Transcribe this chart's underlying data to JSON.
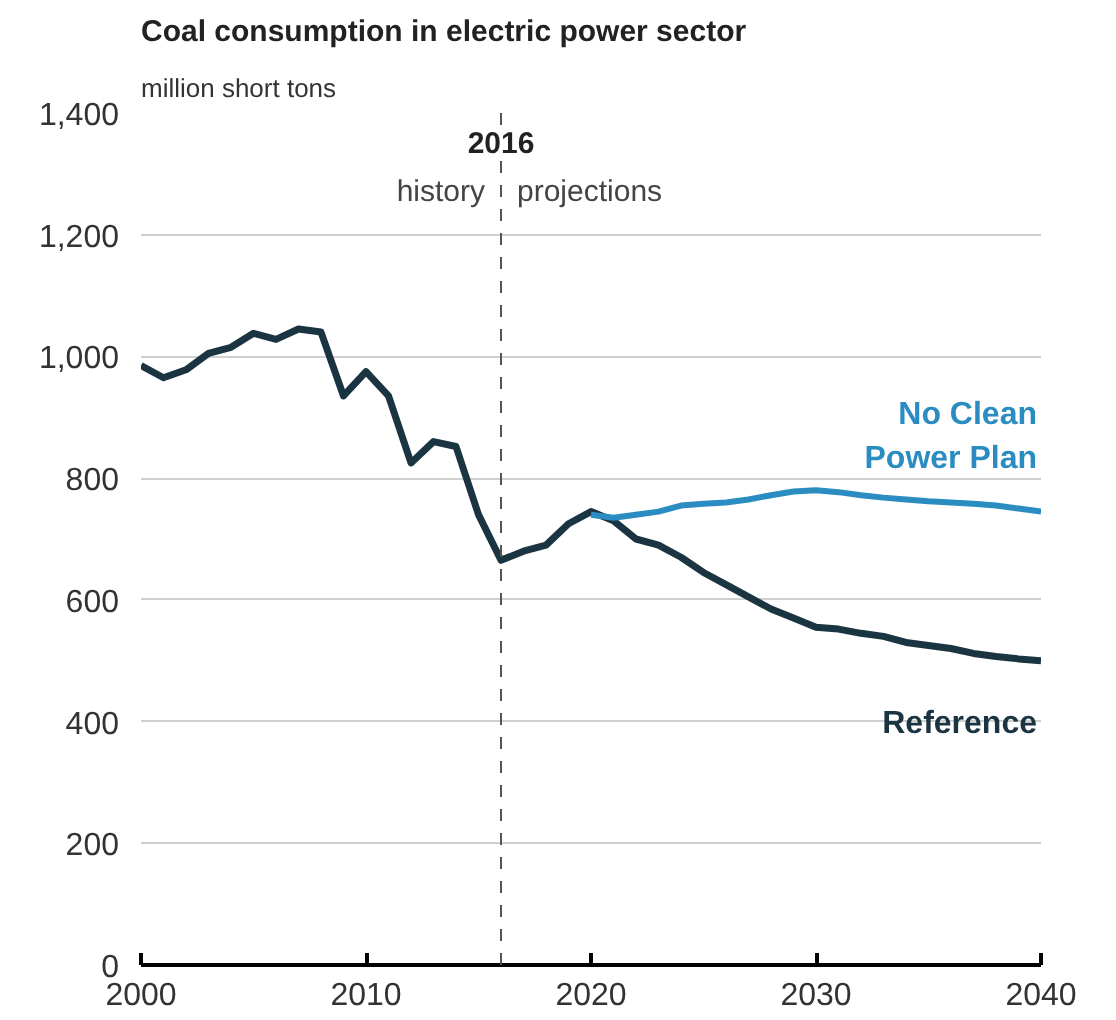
{
  "chart_data": {
    "type": "line",
    "title": "Coal consumption in electric power sector",
    "subtitle": "million short tons",
    "xlim": [
      2000,
      2040
    ],
    "xticks": [
      2000,
      2010,
      2020,
      2030,
      2040
    ],
    "ylim": [
      0,
      1400
    ],
    "yticks": [
      {
        "value": 0,
        "label": "0"
      },
      {
        "value": 200,
        "label": "200"
      },
      {
        "value": 400,
        "label": "400"
      },
      {
        "value": 600,
        "label": "600"
      },
      {
        "value": 800,
        "label": "800"
      },
      {
        "value": 1000,
        "label": "1,000"
      },
      {
        "value": 1200,
        "label": "1,200"
      },
      {
        "value": 1400,
        "label": "1,400"
      }
    ],
    "grid": "y",
    "line_style": "solid",
    "marker": "none",
    "ref_lines": [
      {
        "axis": "x",
        "value": 2016,
        "label": "2016",
        "color": "#555555",
        "line_style": "dashed"
      }
    ],
    "annotations": [
      "history",
      "projections"
    ],
    "series": [
      {
        "name": "Reference",
        "color": "#1b3442",
        "x": [
          2000,
          2001,
          2002,
          2003,
          2004,
          2005,
          2006,
          2007,
          2008,
          2009,
          2010,
          2011,
          2012,
          2013,
          2014,
          2015,
          2016,
          2017,
          2018,
          2019,
          2020,
          2021,
          2022,
          2023,
          2024,
          2025,
          2026,
          2027,
          2028,
          2029,
          2030,
          2031,
          2032,
          2033,
          2034,
          2035,
          2036,
          2037,
          2038,
          2039,
          2040
        ],
        "values": [
          985,
          965,
          978,
          1005,
          1015,
          1038,
          1028,
          1045,
          1040,
          935,
          975,
          935,
          825,
          860,
          852,
          740,
          665,
          680,
          690,
          725,
          745,
          730,
          700,
          690,
          670,
          645,
          625,
          605,
          585,
          570,
          555,
          552,
          545,
          540,
          530,
          525,
          520,
          512,
          507,
          503,
          500
        ]
      },
      {
        "name": "No Clean\nPower Plan",
        "color": "#2a8cc0",
        "x": [
          2020,
          2021,
          2022,
          2023,
          2024,
          2025,
          2026,
          2027,
          2028,
          2029,
          2030,
          2031,
          2032,
          2033,
          2034,
          2035,
          2036,
          2037,
          2038,
          2039,
          2040
        ],
        "values": [
          740,
          735,
          740,
          745,
          755,
          758,
          760,
          765,
          772,
          778,
          780,
          777,
          772,
          768,
          765,
          762,
          760,
          758,
          755,
          750,
          745
        ]
      }
    ]
  }
}
